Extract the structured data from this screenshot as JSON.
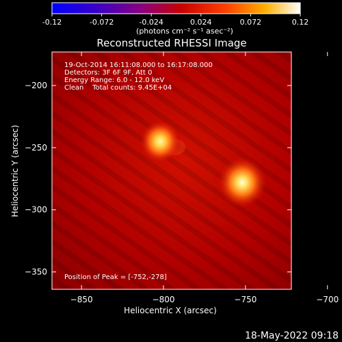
{
  "colorbar": {
    "ticks": [
      "-0.12",
      "-0.072",
      "-0.024",
      "0.024",
      "0.072",
      "0.12"
    ],
    "tick_values": [
      -0.12,
      -0.072,
      -0.024,
      0.024,
      0.072,
      0.12
    ],
    "range": [
      -0.12,
      0.12
    ],
    "unit_label": "(photons cm⁻² s⁻¹ asec⁻²)",
    "colormap": [
      "#0000ff",
      "#3a00c8",
      "#8a0080",
      "#c80000",
      "#ff4000",
      "#ffb000",
      "#ffffff"
    ]
  },
  "chart_data": {
    "type": "heatmap",
    "title": "Reconstructed RHESSI Image",
    "xlabel": "Heliocentric X (arcsec)",
    "ylabel": "Heliocentric Y (arcsec)",
    "xlim": [
      -868,
      -722
    ],
    "ylim": [
      -364,
      -173
    ],
    "xticks": [
      -850,
      -800,
      -750,
      -700
    ],
    "yticks": [
      -200,
      -250,
      -300,
      -350
    ],
    "xtick_labels": [
      "−850",
      "−800",
      "−750",
      "−700"
    ],
    "ytick_labels": [
      "−200",
      "−250",
      "−300",
      "−350"
    ],
    "sources": [
      {
        "x": -802,
        "y": -245
      },
      {
        "x": -752,
        "y": -278
      }
    ],
    "peak": [
      -752,
      -278
    ],
    "info_lines": [
      "19-Oct-2014 16:11:08.000 to 16:17:08.000",
      "Detectors: 3F 6F 9F, Att 0",
      "Energy Range: 6.0 - 12.0 keV",
      "Clean    Total counts: 9.45E+04"
    ],
    "peak_label": "Position of Peak = [-752,-278]"
  },
  "footer": {
    "timestamp": "18-May-2022 09:18"
  }
}
